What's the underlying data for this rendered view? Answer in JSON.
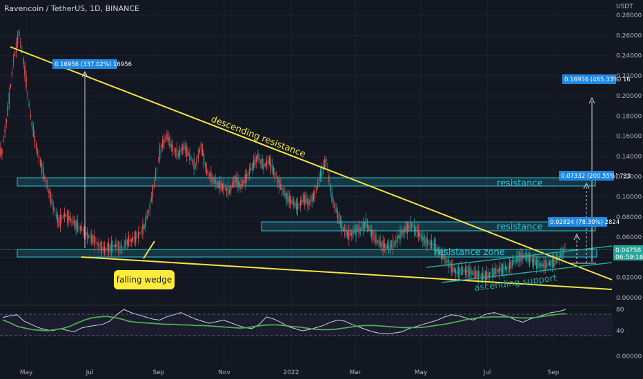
{
  "header": {
    "symbol": "Ravencoin / TetherUS, 1D, BINANCE"
  },
  "chart_data": {
    "type": "candlestick",
    "price_axis": {
      "unit_label": "USDT",
      "ticks": [
        "0.28000",
        "0.26000",
        "0.24000",
        "0.22000",
        "0.20000",
        "0.18000",
        "0.16000",
        "0.14000",
        "0.12000",
        "0.10000",
        "0.08000",
        "0.06000",
        "0.04000",
        "0.02000",
        "0.00000"
      ]
    },
    "rsi_axis": {
      "ticks": [
        "80",
        "40",
        "0.00000"
      ]
    },
    "x_axis": {
      "ticks": [
        "May",
        "Jul",
        "Sep",
        "Nov",
        "2022",
        "Mar",
        "May",
        "Jul",
        "Sep"
      ]
    },
    "price_series": [
      [
        "Apr",
        0.145
      ],
      [
        "Apr",
        0.185
      ],
      [
        "Apr",
        0.235
      ],
      [
        "Apr",
        0.262
      ],
      [
        "Apr",
        0.225
      ],
      [
        "Apr",
        0.18
      ],
      [
        "May",
        0.15
      ],
      [
        "May",
        0.128
      ],
      [
        "May",
        0.11
      ],
      [
        "May",
        0.09
      ],
      [
        "May",
        0.075
      ],
      [
        "May",
        0.082
      ],
      [
        "May",
        0.078
      ],
      [
        "Jun",
        0.072
      ],
      [
        "Jun",
        0.068
      ],
      [
        "Jun",
        0.062
      ],
      [
        "Jun",
        0.058
      ],
      [
        "Jun",
        0.052
      ],
      [
        "Jul",
        0.048
      ],
      [
        "Jul",
        0.05
      ],
      [
        "Jul",
        0.052
      ],
      [
        "Jul",
        0.049
      ],
      [
        "Jul",
        0.055
      ],
      [
        "Jul",
        0.058
      ],
      [
        "Aug",
        0.062
      ],
      [
        "Aug",
        0.07
      ],
      [
        "Aug",
        0.09
      ],
      [
        "Aug",
        0.12
      ],
      [
        "Aug",
        0.15
      ],
      [
        "Aug",
        0.16
      ],
      [
        "Aug",
        0.148
      ],
      [
        "Sep",
        0.142
      ],
      [
        "Sep",
        0.15
      ],
      [
        "Sep",
        0.14
      ],
      [
        "Sep",
        0.13
      ],
      [
        "Sep",
        0.15
      ],
      [
        "Sep",
        0.125
      ],
      [
        "Sep",
        0.118
      ],
      [
        "Oct",
        0.112
      ],
      [
        "Oct",
        0.11
      ],
      [
        "Oct",
        0.105
      ],
      [
        "Oct",
        0.118
      ],
      [
        "Oct",
        0.11
      ],
      [
        "Oct",
        0.12
      ],
      [
        "Nov",
        0.13
      ],
      [
        "Nov",
        0.14
      ],
      [
        "Nov",
        0.13
      ],
      [
        "Nov",
        0.136
      ],
      [
        "Nov",
        0.122
      ],
      [
        "Dec",
        0.11
      ],
      [
        "Dec",
        0.1
      ],
      [
        "Dec",
        0.095
      ],
      [
        "Dec",
        0.09
      ],
      [
        "Dec",
        0.098
      ],
      [
        "Dec",
        0.094
      ],
      [
        "Jan",
        0.102
      ],
      [
        "Jan",
        0.122
      ],
      [
        "Jan",
        0.136
      ],
      [
        "Jan",
        0.1
      ],
      [
        "Jan",
        0.082
      ],
      [
        "Jan",
        0.068
      ],
      [
        "Feb",
        0.062
      ],
      [
        "Feb",
        0.066
      ],
      [
        "Feb",
        0.068
      ],
      [
        "Feb",
        0.074
      ],
      [
        "Feb",
        0.064
      ],
      [
        "Mar",
        0.056
      ],
      [
        "Mar",
        0.052
      ],
      [
        "Mar",
        0.05
      ],
      [
        "Mar",
        0.054
      ],
      [
        "Mar",
        0.062
      ],
      [
        "Mar",
        0.068
      ],
      [
        "Apr",
        0.072
      ],
      [
        "Apr",
        0.066
      ],
      [
        "Apr",
        0.058
      ],
      [
        "Apr",
        0.054
      ],
      [
        "Apr",
        0.052
      ],
      [
        "May",
        0.044
      ],
      [
        "May",
        0.038
      ],
      [
        "May",
        0.03
      ],
      [
        "May",
        0.025
      ],
      [
        "May",
        0.027
      ],
      [
        "Jun",
        0.026
      ],
      [
        "Jun",
        0.024
      ],
      [
        "Jun",
        0.022
      ],
      [
        "Jun",
        0.021
      ],
      [
        "Jun",
        0.024
      ],
      [
        "Jul",
        0.027
      ],
      [
        "Jul",
        0.028
      ],
      [
        "Jul",
        0.03
      ],
      [
        "Jul",
        0.036
      ],
      [
        "Jul",
        0.04
      ],
      [
        "Aug",
        0.041
      ],
      [
        "Aug",
        0.038
      ],
      [
        "Aug",
        0.034
      ],
      [
        "Aug",
        0.032
      ],
      [
        "Aug",
        0.033
      ],
      [
        "Sep",
        0.035
      ],
      [
        "Sep",
        0.04
      ],
      [
        "Sep",
        0.0476
      ]
    ],
    "rsi_series": [
      65,
      68,
      70,
      58,
      52,
      46,
      42,
      40,
      44,
      41,
      38,
      45,
      48,
      50,
      52,
      58,
      70,
      80,
      74,
      70,
      66,
      62,
      60,
      66,
      70,
      74,
      68,
      62,
      58,
      54,
      57,
      60,
      55,
      50,
      46,
      44,
      52,
      66,
      62,
      56,
      48,
      44,
      40,
      42,
      46,
      50,
      56,
      60,
      58,
      52,
      47,
      42,
      38,
      35,
      34,
      36,
      38,
      44,
      48,
      52,
      56,
      60,
      66,
      70,
      68,
      64,
      60,
      66,
      72,
      74,
      70,
      66,
      60,
      56,
      62,
      66,
      70,
      74,
      76,
      80
    ],
    "rsi_ma_series": [
      60,
      55,
      48,
      45,
      42,
      41,
      40,
      42,
      44,
      48,
      54,
      60,
      64,
      66,
      67,
      65,
      62,
      58,
      56,
      55,
      54,
      53,
      52,
      52,
      51,
      51,
      50,
      50,
      49,
      48,
      47,
      46,
      45,
      46,
      48,
      50,
      51,
      51,
      50,
      48,
      47,
      45,
      43,
      42,
      42,
      43,
      45,
      47,
      49,
      50,
      50,
      49,
      48,
      47,
      46,
      46,
      46,
      47,
      49,
      51,
      53,
      56,
      59,
      62,
      64,
      65,
      66,
      66,
      66,
      65,
      64,
      64,
      65,
      67,
      69,
      71,
      72
    ],
    "annotations": {
      "descending_resistance": "descending resistance",
      "resistance_1": "resistance",
      "resistance_2": "resistance",
      "resistance_zone": "resistance zone",
      "ascending_support": "ascending support",
      "falling_wedge": "falling wedge"
    },
    "measure_labels": {
      "past_move": "0.16956 (337.02%) 16956",
      "target_3": "0.16956 (465.33%) 16",
      "target_2": "0.07332 (200.55%) 733",
      "target_1": "0.02824 (78.30%) 2824"
    },
    "last_price": {
      "value": "0.04758",
      "countdown": "06:59:16"
    },
    "colors": {
      "background": "#131722",
      "candle_up": "#26a69a",
      "candle_down": "#ef5350",
      "trendline": "#f5e642",
      "zone": "#26c6da",
      "rsi_line": "#d1d4dc",
      "rsi_ma": "#4caf50",
      "label_bg": "#1e88e5"
    }
  }
}
